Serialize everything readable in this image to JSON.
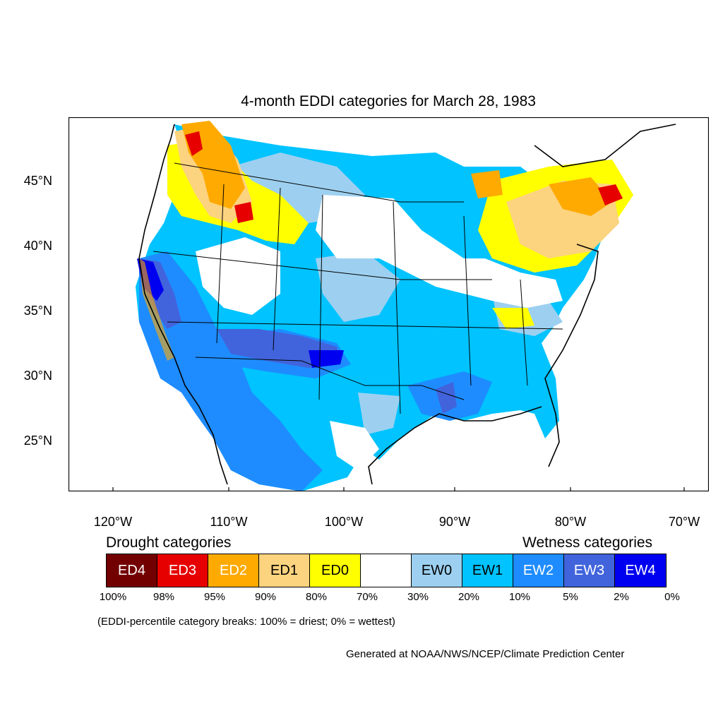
{
  "title": "4-month EDDI categories for March 28, 1983",
  "lat_labels": [
    "45°N",
    "40°N",
    "35°N",
    "30°N",
    "25°N"
  ],
  "lon_labels": [
    "120°W",
    "110°W",
    "100°W",
    "90°W",
    "80°W",
    "70°W"
  ],
  "legend": {
    "drought_heading": "Drought categories",
    "wetness_heading": "Wetness categories",
    "categories": [
      {
        "label": "ED4",
        "color": "#730000"
      },
      {
        "label": "ED3",
        "color": "#e60000"
      },
      {
        "label": "ED2",
        "color": "#ffaa00"
      },
      {
        "label": "ED1",
        "color": "#fcd37f"
      },
      {
        "label": "ED0",
        "color": "#ffff00"
      },
      {
        "label": "",
        "color": "#ffffff"
      },
      {
        "label": "EW0",
        "color": "#9dd0f0"
      },
      {
        "label": "EW1",
        "color": "#00c3ff"
      },
      {
        "label": "EW2",
        "color": "#1e8cff"
      },
      {
        "label": "EW3",
        "color": "#4164dc"
      },
      {
        "label": "EW4",
        "color": "#0000f0"
      }
    ],
    "breaks": [
      "100%",
      "98%",
      "95%",
      "90%",
      "80%",
      "70%",
      "30%",
      "20%",
      "10%",
      "5%",
      "2%",
      "0%"
    ]
  },
  "note": "(EDDI-percentile category breaks: 100% = driest; 0% = wettest)",
  "credit": "Generated at NOAA/NWS/NCEP/Climate Prediction Center"
}
